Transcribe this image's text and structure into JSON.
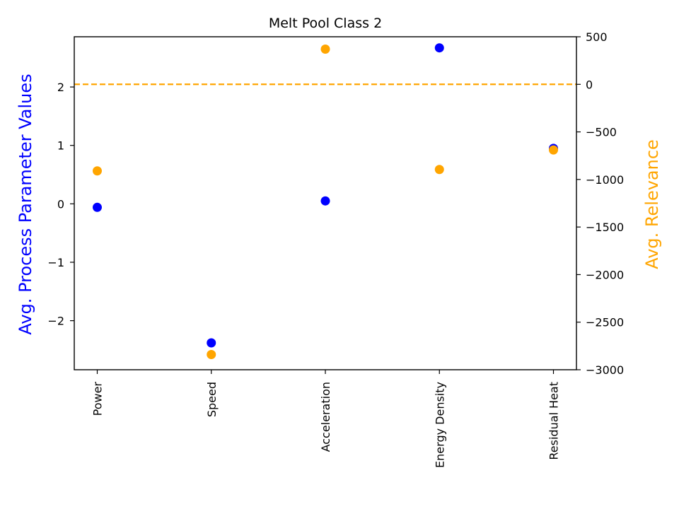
{
  "chart_data": {
    "type": "scatter",
    "title": "Melt Pool Class 2",
    "categories": [
      "Power",
      "Speed",
      "Acceleration",
      "Energy Density",
      "Residual Heat"
    ],
    "series": [
      {
        "axis": "left",
        "color": "#0000ff",
        "values": [
          -0.06,
          -2.38,
          0.05,
          2.67,
          0.95
        ]
      },
      {
        "axis": "right",
        "color": "#ffa500",
        "values": [
          -910,
          -2840,
          370,
          -895,
          -690
        ]
      }
    ],
    "y_left": {
      "label": "Avg. Process Parameter Values",
      "color": "#0000ff",
      "ticks": [
        -2,
        -1,
        0,
        1,
        2
      ],
      "range": [
        -2.84,
        2.86
      ]
    },
    "y_right": {
      "label": "Avg. Relevance",
      "color": "#ffa500",
      "ticks": [
        500,
        0,
        -500,
        -1000,
        -1500,
        -2000,
        -2500,
        -3000
      ],
      "range": [
        -3000,
        500
      ]
    },
    "reference_line": {
      "axis": "right",
      "value": 0,
      "style": "dashed",
      "color": "#ffa500"
    },
    "grid": false
  }
}
